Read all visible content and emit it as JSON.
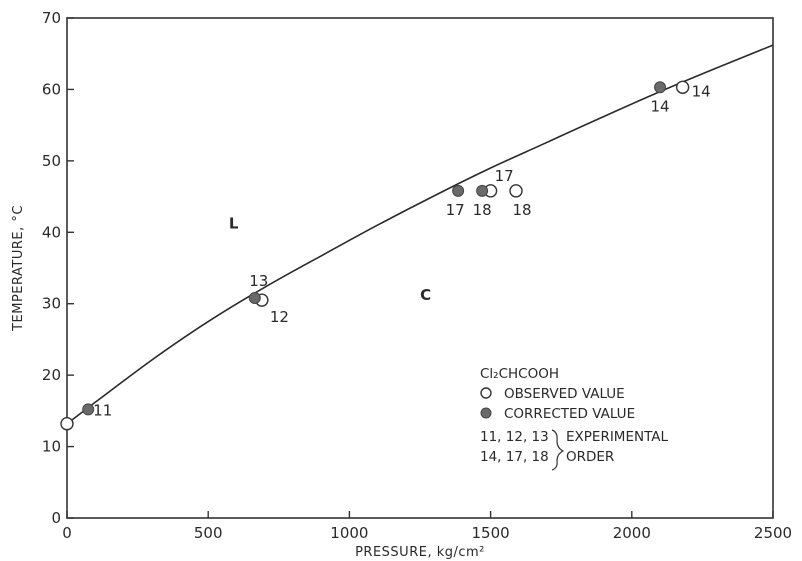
{
  "chart_data": {
    "type": "scatter",
    "xlabel": "PRESSURE, kg/cm²",
    "ylabel": "TEMPERATURE, °C",
    "xlim": [
      0,
      2500
    ],
    "ylim": [
      0,
      70
    ],
    "xticks": [
      "0",
      "500",
      "1000",
      "1500",
      "2000",
      "2500"
    ],
    "yticks": [
      "0",
      "10",
      "20",
      "30",
      "40",
      "50",
      "60",
      "70"
    ],
    "grid": false,
    "curve": {
      "x": [
        0,
        100,
        300,
        500,
        700,
        900,
        1100,
        1300,
        1500,
        1700,
        1900,
        2100,
        2300,
        2500
      ],
      "y": [
        13.2,
        16.2,
        22.1,
        27.5,
        32.3,
        36.7,
        41.0,
        45.1,
        49.0,
        52.6,
        56.2,
        59.7,
        63.0,
        66.2
      ]
    },
    "observed": [
      {
        "x": 0,
        "y": 13.2,
        "label": ""
      },
      {
        "x": 690,
        "y": 30.5,
        "label": "12"
      },
      {
        "x": 1500,
        "y": 45.8,
        "label": "17"
      },
      {
        "x": 1590,
        "y": 45.8,
        "label": "18"
      },
      {
        "x": 2180,
        "y": 60.3,
        "label": "14"
      }
    ],
    "corrected": [
      {
        "x": 75,
        "y": 15.2,
        "label": "11"
      },
      {
        "x": 665,
        "y": 30.8,
        "label": "13"
      },
      {
        "x": 1385,
        "y": 45.8,
        "label": "17"
      },
      {
        "x": 1470,
        "y": 45.8,
        "label": "18"
      },
      {
        "x": 2100,
        "y": 60.3,
        "label": "14"
      }
    ],
    "regions": [
      {
        "text": "L",
        "x": 590,
        "y": 40.5
      },
      {
        "text": "C",
        "x": 1270,
        "y": 30.5
      }
    ],
    "legend": {
      "position": "bottom-right",
      "title": "Cl₂CHCOOH",
      "observed": "OBSERVED VALUE",
      "corrected": "CORRECTED VALUE",
      "note_line1_numbers": "11, 12, 13",
      "note_line1_text": "EXPERIMENTAL",
      "note_line2_numbers": "14, 17, 18",
      "note_line2_text": "ORDER"
    }
  }
}
